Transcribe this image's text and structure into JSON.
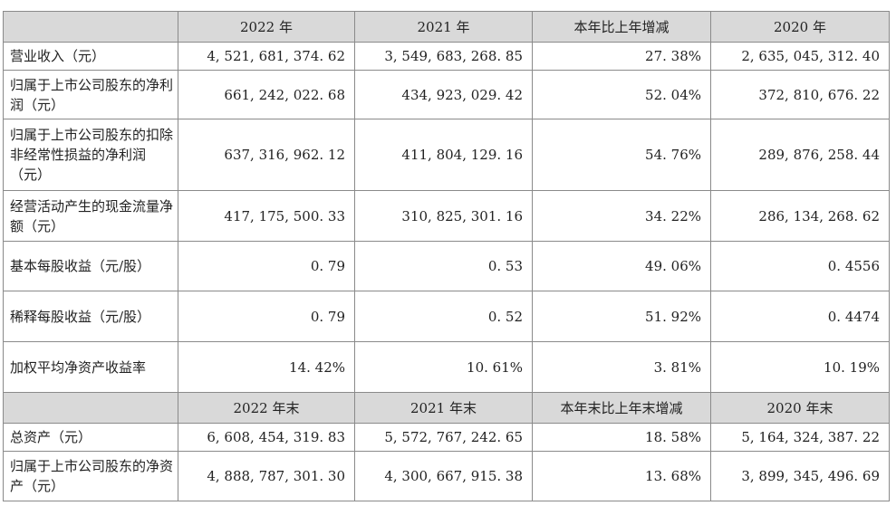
{
  "table1": {
    "headers": [
      "",
      "2022 年",
      "2021 年",
      "本年比上年增减",
      "2020 年"
    ],
    "rows": [
      {
        "label": "营业收入（元）",
        "values": [
          "4, 521, 681, 374. 62",
          "3, 549, 683, 268. 85",
          "27. 38%",
          "2, 635, 045, 312. 40"
        ]
      },
      {
        "label": "归属于上市公司股东的净利润（元）",
        "values": [
          "661, 242, 022. 68",
          "434, 923, 029. 42",
          "52. 04%",
          "372, 810, 676. 22"
        ]
      },
      {
        "label": "归属于上市公司股东的扣除非经常性损益的净利润（元）",
        "values": [
          "637, 316, 962. 12",
          "411, 804, 129. 16",
          "54. 76%",
          "289, 876, 258. 44"
        ]
      },
      {
        "label": "经营活动产生的现金流量净额（元）",
        "values": [
          "417, 175, 500. 33",
          "310, 825, 301. 16",
          "34. 22%",
          "286, 134, 268. 62"
        ]
      },
      {
        "label": "基本每股收益（元/股）",
        "values": [
          "0. 79",
          "0. 53",
          "49. 06%",
          "0. 4556"
        ]
      },
      {
        "label": "稀释每股收益（元/股）",
        "values": [
          "0. 79",
          "0. 52",
          "51. 92%",
          "0. 4474"
        ]
      },
      {
        "label": "加权平均净资产收益率",
        "values": [
          "14. 42%",
          "10. 61%",
          "3. 81%",
          "10. 19%"
        ]
      }
    ]
  },
  "table2": {
    "headers": [
      "",
      "2022 年末",
      "2021 年末",
      "本年末比上年末增减",
      "2020 年末"
    ],
    "rows": [
      {
        "label": "总资产（元）",
        "values": [
          "6, 608, 454, 319. 83",
          "5, 572, 767, 242. 65",
          "18. 58%",
          "5, 164, 324, 387. 22"
        ]
      },
      {
        "label": "归属于上市公司股东的净资产（元）",
        "values": [
          "4, 888, 787, 301. 30",
          "4, 300, 667, 915. 38",
          "13. 68%",
          "3, 899, 345, 496. 69"
        ]
      }
    ]
  }
}
